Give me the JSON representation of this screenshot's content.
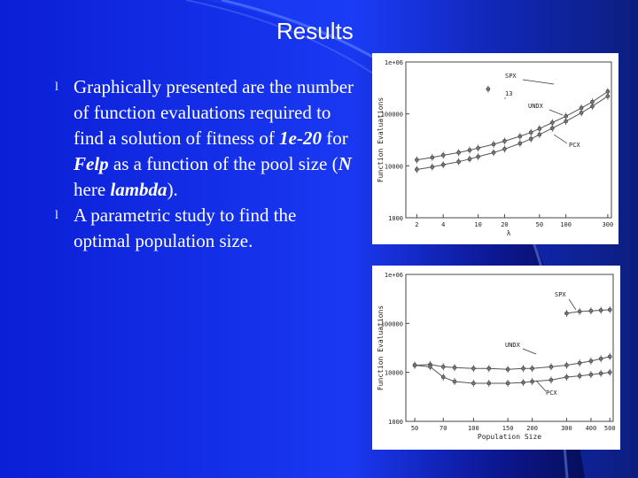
{
  "slide": {
    "title": "Results",
    "bullets": [
      {
        "segments": [
          {
            "text": "Graphically presented are the number of function evaluations required to find a solution of fitness of ",
            "style": "normal"
          },
          {
            "text": "1e-20",
            "style": "bolditalic"
          },
          {
            "text": " for ",
            "style": "normal"
          },
          {
            "text": "Felp",
            "style": "bolditalic"
          },
          {
            "text": " as a function of the pool size (",
            "style": "normal"
          },
          {
            "text": "N",
            "style": "bolditalic"
          },
          {
            "text": " here ",
            "style": "normal"
          },
          {
            "text": "lambda",
            "style": "bolditalic"
          },
          {
            "text": ").",
            "style": "normal"
          }
        ]
      },
      {
        "segments": [
          {
            "text": "A parametric study to find the optimal population size.",
            "style": "normal"
          }
        ]
      }
    ],
    "bullet_glyph": "l",
    "colors": {
      "background": "#1a38f2",
      "background_dark": "#030a3a",
      "text": "#ffffff"
    }
  },
  "chart_data": [
    {
      "type": "line",
      "ylabel": "Function Evaluations",
      "xlabel": "λ",
      "x_ticks": [
        "2",
        "4",
        "10",
        "20",
        "50",
        "100",
        "300"
      ],
      "y_ticks": [
        "1e+06",
        "100000",
        "10000",
        "1000"
      ],
      "yscale": "log",
      "xscale": "log",
      "series": [
        {
          "name": "SPX",
          "x": [
            13
          ],
          "y": [
            300000
          ]
        },
        {
          "name": "UNDX",
          "x": [
            2,
            3,
            4,
            6,
            8,
            10,
            15,
            20,
            30,
            40,
            50,
            70,
            100,
            150,
            200,
            300
          ],
          "y": [
            13000,
            14500,
            16000,
            18000,
            20000,
            22000,
            26000,
            30000,
            37000,
            44000,
            52000,
            68000,
            90000,
            130000,
            170000,
            270000
          ]
        },
        {
          "name": "PCX",
          "x": [
            2,
            3,
            4,
            6,
            8,
            10,
            15,
            20,
            30,
            40,
            50,
            70,
            100,
            150,
            200,
            300
          ],
          "y": [
            8500,
            9500,
            10500,
            12000,
            13500,
            15000,
            18000,
            21000,
            27000,
            33000,
            40000,
            53000,
            72000,
            105000,
            140000,
            220000
          ]
        }
      ],
      "annotations": [
        "SPX",
        "13",
        "UNDX",
        "PCX"
      ]
    },
    {
      "type": "line",
      "ylabel": "Function Evaluations",
      "xlabel": "Population Size",
      "x_ticks": [
        "50",
        "70",
        "100",
        "150",
        "200",
        "300",
        "400",
        "500"
      ],
      "y_ticks": [
        "1e+06",
        "100000",
        "10000",
        "1000"
      ],
      "yscale": "log",
      "xscale": "log",
      "series": [
        {
          "name": "SPX",
          "x": [
            300,
            350,
            400,
            450,
            500
          ],
          "y": [
            160000,
            175000,
            180000,
            185000,
            190000
          ]
        },
        {
          "name": "UNDX",
          "x": [
            50,
            60,
            70,
            80,
            100,
            120,
            150,
            180,
            200,
            250,
            300,
            350,
            400,
            450,
            500
          ],
          "y": [
            14000,
            14500,
            13000,
            12500,
            12000,
            12000,
            11500,
            12000,
            12000,
            13000,
            14000,
            15500,
            17000,
            19000,
            21000
          ]
        },
        {
          "name": "PCX",
          "x": [
            50,
            60,
            70,
            80,
            100,
            120,
            150,
            180,
            200,
            250,
            300,
            350,
            400,
            450,
            500
          ],
          "y": [
            14000,
            13000,
            8000,
            6500,
            6000,
            6000,
            6000,
            6200,
            6500,
            7000,
            8000,
            8500,
            9000,
            9500,
            10000
          ]
        }
      ],
      "annotations": [
        "SPX",
        "UNDX",
        "PCX"
      ]
    }
  ]
}
